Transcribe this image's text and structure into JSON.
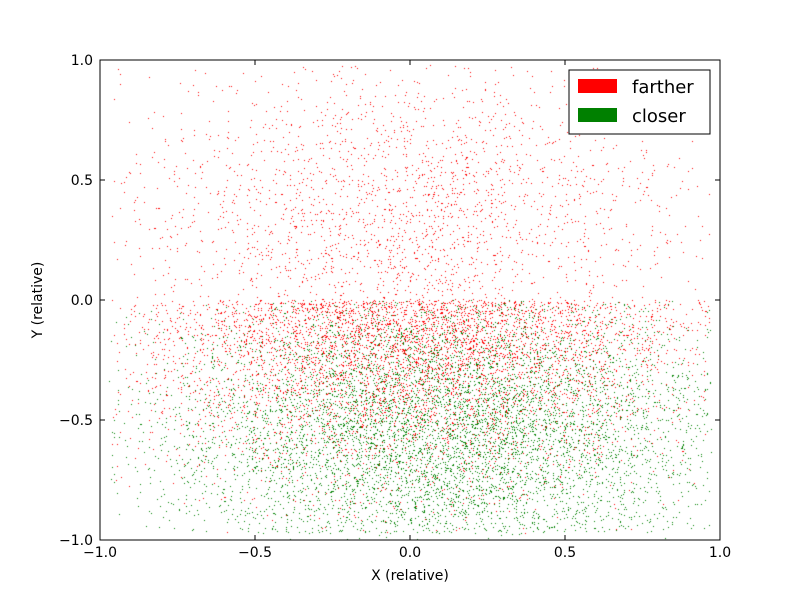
{
  "chart_data": {
    "type": "scatter",
    "title": "",
    "xlabel": "X (relative)",
    "ylabel": "Y (relative)",
    "xlim": [
      -1.0,
      1.0
    ],
    "ylim": [
      -1.0,
      1.0
    ],
    "xticks": [
      -1.0,
      -0.5,
      0.0,
      0.5,
      1.0
    ],
    "yticks": [
      -1.0,
      -0.5,
      0.0,
      0.5,
      1.0
    ],
    "xtick_labels": [
      "−1.0",
      "−0.5",
      "0.0",
      "0.5",
      "1.0"
    ],
    "ytick_labels": [
      "−1.0",
      "−0.5",
      "0.0",
      "0.5",
      "1.0"
    ],
    "grid": false,
    "legend_position": "top-right",
    "series": [
      {
        "name": "farther",
        "color": "#ff0000",
        "y_range": [
          0.0,
          1.0
        ],
        "density_center": [
          0.0,
          0.35
        ],
        "spread": [
          0.45,
          0.35
        ]
      },
      {
        "name": "closer",
        "color": "#008000",
        "y_range": [
          -1.0,
          0.0
        ],
        "density_center": [
          0.1,
          -0.55
        ],
        "spread": [
          0.45,
          0.3
        ]
      }
    ],
    "overlap_region": {
      "description_only_visual": true,
      "y_range": [
        -0.5,
        0.0
      ],
      "mix_color": "#7a3300"
    }
  },
  "legend": {
    "items": [
      {
        "label": "farther",
        "color": "#ff0000"
      },
      {
        "label": "closer",
        "color": "#008000"
      }
    ]
  }
}
